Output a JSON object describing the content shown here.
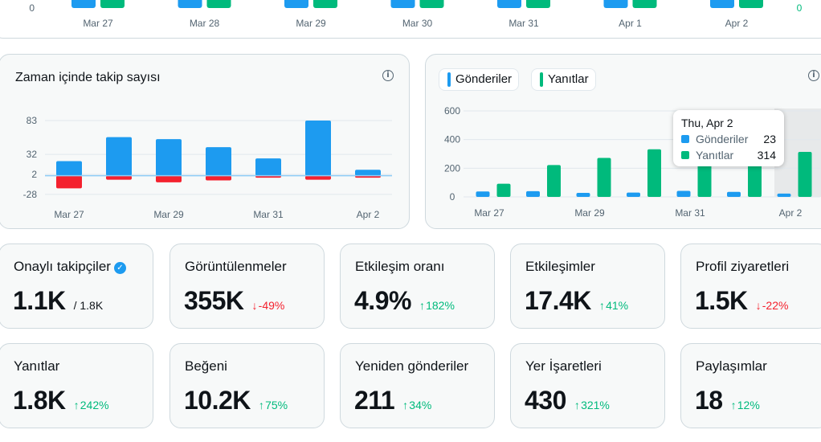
{
  "top_chart": {
    "dates": [
      "Mar 27",
      "Mar 28",
      "Mar 29",
      "Mar 30",
      "Mar 31",
      "Apr 1",
      "Apr 2"
    ],
    "left_axis_label": "0",
    "right_axis_label": "0",
    "colors": {
      "blue": "#1d9bf0",
      "green": "#00ba7c"
    }
  },
  "follow_chart": {
    "title": "Zaman içinde takip sayısı",
    "info_icon": "info-icon",
    "chart_data": {
      "type": "bar",
      "categories": [
        "Mar 27",
        "Mar 28",
        "Mar 29",
        "Mar 30",
        "Mar 31",
        "Apr 1",
        "Apr 2"
      ],
      "x_tick_labels": [
        "Mar 27",
        "Mar 29",
        "Mar 31",
        "Apr 2"
      ],
      "y_ticks": [
        "83",
        "32",
        "2",
        "-28"
      ],
      "ylim": [
        -32,
        86
      ],
      "series": [
        {
          "values": [
            22,
            58,
            55,
            43,
            26,
            83,
            9
          ],
          "color": "#1d9bf0"
        },
        {
          "values": [
            -19,
            -6,
            -10,
            -7,
            -3,
            -6,
            -3
          ],
          "color": "#f4212e"
        }
      ]
    }
  },
  "posts_chart": {
    "legend": [
      {
        "label": "Gönderiler",
        "color": "#1d9bf0"
      },
      {
        "label": "Yanıtlar",
        "color": "#00ba7c"
      }
    ],
    "info_icon": "info-icon",
    "chart_data": {
      "type": "bar",
      "categories": [
        "Mar 27",
        "Mar 28",
        "Mar 29",
        "Mar 30",
        "Mar 31",
        "Apr 1",
        "Apr 2"
      ],
      "x_tick_labels": [
        "Mar 27",
        "Mar 29",
        "Mar 31",
        "Apr 2"
      ],
      "y_ticks": [
        "600",
        "400",
        "200",
        "0"
      ],
      "ylim": [
        0,
        600
      ],
      "series": [
        {
          "name": "Gönderiler",
          "values": [
            38,
            40,
            28,
            30,
            42,
            35,
            23
          ],
          "color": "#1d9bf0"
        },
        {
          "name": "Yanıtlar",
          "values": [
            92,
            222,
            272,
            332,
            300,
            305,
            314
          ],
          "color": "#00ba7c"
        }
      ],
      "highlight_index": 6
    },
    "tooltip": {
      "date": "Thu, Apr 2",
      "rows": [
        {
          "label": "Gönderiler",
          "value": "23",
          "color": "#1d9bf0"
        },
        {
          "label": "Yanıtlar",
          "value": "314",
          "color": "#00ba7c"
        }
      ]
    }
  },
  "metrics": [
    {
      "title": "Onaylı takipçiler",
      "value": "1.1K",
      "sub": "/ 1.8K",
      "verified": true
    },
    {
      "title": "Görüntülenmeler",
      "value": "355K",
      "delta": "-49%",
      "dir": "down"
    },
    {
      "title": "Etkileşim oranı",
      "value": "4.9%",
      "delta": "182%",
      "dir": "up"
    },
    {
      "title": "Etkileşimler",
      "value": "17.4K",
      "delta": "41%",
      "dir": "up"
    },
    {
      "title": "Profil ziyaretleri",
      "value": "1.5K",
      "delta": "-22%",
      "dir": "down"
    },
    {
      "title": "Yanıtlar",
      "value": "1.8K",
      "delta": "242%",
      "dir": "up"
    },
    {
      "title": "Beğeni",
      "value": "10.2K",
      "delta": "75%",
      "dir": "up"
    },
    {
      "title": "Yeniden gönderiler",
      "value": "211",
      "delta": "34%",
      "dir": "up"
    },
    {
      "title": "Yer İşaretleri",
      "value": "430",
      "delta": "321%",
      "dir": "up"
    },
    {
      "title": "Paylaşımlar",
      "value": "18",
      "delta": "12%",
      "dir": "up"
    }
  ]
}
